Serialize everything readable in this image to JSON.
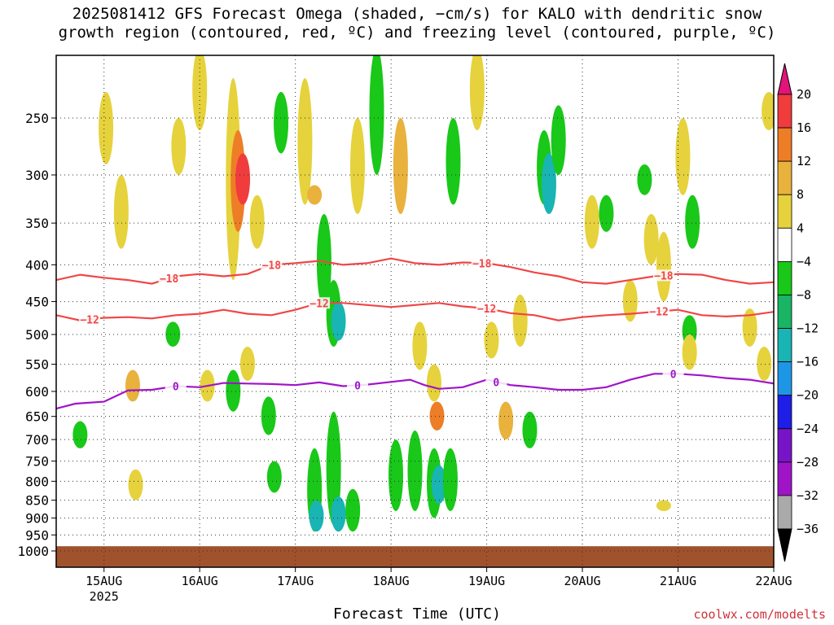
{
  "chart_data": {
    "type": "heatmap",
    "title_line1": "2025081412 GFS Forecast Omega (shaded, −cm/s) for KALO with dendritic snow",
    "title_line2": "growth region (contoured, red, ºC) and freezing level (contoured, purple, ºC)",
    "xlabel": "Forecast Time (UTC)",
    "ylabel": "",
    "credit": "coolwx.com/modelts",
    "x_ticks": [
      {
        "day": 15,
        "label": "15AUG",
        "sub": "2025"
      },
      {
        "day": 16,
        "label": "16AUG",
        "sub": ""
      },
      {
        "day": 17,
        "label": "17AUG",
        "sub": ""
      },
      {
        "day": 18,
        "label": "18AUG",
        "sub": ""
      },
      {
        "day": 19,
        "label": "19AUG",
        "sub": ""
      },
      {
        "day": 20,
        "label": "20AUG",
        "sub": ""
      },
      {
        "day": 21,
        "label": "21AUG",
        "sub": ""
      },
      {
        "day": 22,
        "label": "22AUG",
        "sub": ""
      }
    ],
    "xlim_day": [
      14.5,
      22
    ],
    "y_levels": [
      250,
      300,
      350,
      400,
      450,
      500,
      550,
      600,
      650,
      700,
      750,
      800,
      850,
      900,
      950,
      1000
    ],
    "y_axis": "pressure (hPa), log scale, inverted",
    "ylim": [
      1000,
      200
    ],
    "grid": "dotted horizontal and vertical",
    "colorbar": {
      "labels": [
        "20",
        "16",
        "12",
        "8",
        "4",
        "−4",
        "−8",
        "−12",
        "−16",
        "−20",
        "−24",
        "−28",
        "−32",
        "−36"
      ],
      "colors": [
        "#f03c3c",
        "#ee7d28",
        "#e8b23c",
        "#e6d23c",
        "#ffffff",
        "#19c819",
        "#19b464",
        "#19b4b4",
        "#1e96e6",
        "#1e1ee6",
        "#7814c8",
        "#a014c8",
        "#aaaaaa"
      ],
      "top_color": "#e0147a",
      "bottom_color": "#000000"
    },
    "contours": [
      {
        "label": "−18",
        "color": "#f04646",
        "points": [
          [
            14.5,
            420
          ],
          [
            14.75,
            413
          ],
          [
            15.0,
            417
          ],
          [
            15.25,
            420
          ],
          [
            15.5,
            425
          ],
          [
            15.75,
            415
          ],
          [
            16.0,
            412
          ],
          [
            16.25,
            415
          ],
          [
            16.5,
            412
          ],
          [
            16.75,
            400
          ],
          [
            17.0,
            398
          ],
          [
            17.25,
            395
          ],
          [
            17.5,
            400
          ],
          [
            17.75,
            398
          ],
          [
            18.0,
            392
          ],
          [
            18.25,
            398
          ],
          [
            18.5,
            400
          ],
          [
            18.75,
            397
          ],
          [
            19.0,
            398
          ],
          [
            19.25,
            403
          ],
          [
            19.5,
            410
          ],
          [
            19.75,
            415
          ],
          [
            20.0,
            423
          ],
          [
            20.25,
            425
          ],
          [
            20.5,
            420
          ],
          [
            20.75,
            415
          ],
          [
            21.0,
            412
          ],
          [
            21.25,
            413
          ],
          [
            21.5,
            420
          ],
          [
            21.75,
            425
          ],
          [
            22.0,
            423
          ]
        ],
        "labels_at": [
          15.68,
          16.75,
          18.95,
          20.85
        ]
      },
      {
        "label": "−12",
        "color": "#f04646",
        "points": [
          [
            14.5,
            470
          ],
          [
            14.75,
            478
          ],
          [
            15.0,
            474
          ],
          [
            15.25,
            473
          ],
          [
            15.5,
            475
          ],
          [
            15.75,
            470
          ],
          [
            16.0,
            468
          ],
          [
            16.25,
            462
          ],
          [
            16.5,
            468
          ],
          [
            16.75,
            470
          ],
          [
            17.0,
            462
          ],
          [
            17.25,
            452
          ],
          [
            17.5,
            452
          ],
          [
            17.75,
            455
          ],
          [
            18.0,
            458
          ],
          [
            18.25,
            455
          ],
          [
            18.5,
            452
          ],
          [
            18.75,
            457
          ],
          [
            19.0,
            460
          ],
          [
            19.25,
            467
          ],
          [
            19.5,
            470
          ],
          [
            19.75,
            478
          ],
          [
            20.0,
            473
          ],
          [
            20.25,
            470
          ],
          [
            20.5,
            468
          ],
          [
            20.75,
            465
          ],
          [
            21.0,
            462
          ],
          [
            21.25,
            470
          ],
          [
            21.5,
            472
          ],
          [
            21.75,
            470
          ],
          [
            22.0,
            465
          ]
        ],
        "labels_at": [
          14.85,
          17.25,
          19.0,
          20.8
        ]
      },
      {
        "label": "0",
        "color": "#a014c8",
        "points": [
          [
            14.5,
            634
          ],
          [
            14.7,
            624
          ],
          [
            15.0,
            620
          ],
          [
            15.25,
            598
          ],
          [
            15.5,
            597
          ],
          [
            15.75,
            590
          ],
          [
            16.0,
            592
          ],
          [
            16.25,
            584
          ],
          [
            16.5,
            585
          ],
          [
            16.75,
            586
          ],
          [
            17.0,
            588
          ],
          [
            17.25,
            583
          ],
          [
            17.5,
            590
          ],
          [
            17.75,
            587
          ],
          [
            18.0,
            582
          ],
          [
            18.2,
            578
          ],
          [
            18.35,
            588
          ],
          [
            18.5,
            595
          ],
          [
            18.75,
            592
          ],
          [
            19.0,
            578
          ],
          [
            19.25,
            588
          ],
          [
            19.5,
            592
          ],
          [
            19.75,
            597
          ],
          [
            20.0,
            597
          ],
          [
            20.25,
            592
          ],
          [
            20.5,
            578
          ],
          [
            20.75,
            567
          ],
          [
            21.0,
            567
          ],
          [
            21.25,
            570
          ],
          [
            21.5,
            575
          ],
          [
            21.75,
            578
          ],
          [
            22.0,
            585
          ]
        ],
        "labels_at": [
          15.75,
          17.65,
          19.1,
          20.95
        ]
      }
    ],
    "shaded_cells": [
      {
        "day": 15.02,
        "p0": 230,
        "p1": 290,
        "v": 6
      },
      {
        "day": 15.18,
        "p0": 300,
        "p1": 380,
        "v": 6
      },
      {
        "day": 15.3,
        "p0": 560,
        "p1": 620,
        "v": 10
      },
      {
        "day": 15.33,
        "p0": 770,
        "p1": 850,
        "v": 6
      },
      {
        "day": 14.75,
        "p0": 660,
        "p1": 720,
        "v": -6
      },
      {
        "day": 15.72,
        "p0": 480,
        "p1": 520,
        "v": -6
      },
      {
        "day": 15.78,
        "p0": 250,
        "p1": 300,
        "v": 6
      },
      {
        "day": 16.0,
        "p0": 200,
        "p1": 260,
        "v": 6
      },
      {
        "day": 16.35,
        "p0": 220,
        "p1": 420,
        "v": 6
      },
      {
        "day": 16.4,
        "p0": 260,
        "p1": 360,
        "v": 12
      },
      {
        "day": 16.45,
        "p0": 280,
        "p1": 330,
        "v": 16
      },
      {
        "day": 16.6,
        "p0": 320,
        "p1": 380,
        "v": 6
      },
      {
        "day": 16.08,
        "p0": 560,
        "p1": 620,
        "v": 6
      },
      {
        "day": 16.35,
        "p0": 560,
        "p1": 640,
        "v": -6
      },
      {
        "day": 16.5,
        "p0": 520,
        "p1": 580,
        "v": 6
      },
      {
        "day": 16.72,
        "p0": 610,
        "p1": 690,
        "v": -6
      },
      {
        "day": 16.78,
        "p0": 750,
        "p1": 830,
        "v": -6
      },
      {
        "day": 16.85,
        "p0": 230,
        "p1": 280,
        "v": -6
      },
      {
        "day": 17.1,
        "p0": 220,
        "p1": 330,
        "v": 6
      },
      {
        "day": 17.2,
        "p0": 310,
        "p1": 330,
        "v": 10
      },
      {
        "day": 17.3,
        "p0": 340,
        "p1": 460,
        "v": -6
      },
      {
        "day": 17.4,
        "p0": 420,
        "p1": 520,
        "v": -6
      },
      {
        "day": 17.45,
        "p0": 450,
        "p1": 510,
        "v": -12
      },
      {
        "day": 17.2,
        "p0": 720,
        "p1": 940,
        "v": -6
      },
      {
        "day": 17.22,
        "p0": 850,
        "p1": 940,
        "v": -12
      },
      {
        "day": 17.4,
        "p0": 640,
        "p1": 920,
        "v": -6
      },
      {
        "day": 17.45,
        "p0": 840,
        "p1": 940,
        "v": -12
      },
      {
        "day": 17.6,
        "p0": 820,
        "p1": 940,
        "v": -6
      },
      {
        "day": 17.65,
        "p0": 250,
        "p1": 340,
        "v": 6
      },
      {
        "day": 17.85,
        "p0": 200,
        "p1": 300,
        "v": -6
      },
      {
        "day": 18.05,
        "p0": 700,
        "p1": 880,
        "v": -6
      },
      {
        "day": 18.1,
        "p0": 250,
        "p1": 340,
        "v": 10
      },
      {
        "day": 18.25,
        "p0": 680,
        "p1": 880,
        "v": -6
      },
      {
        "day": 18.3,
        "p0": 480,
        "p1": 560,
        "v": 6
      },
      {
        "day": 18.45,
        "p0": 550,
        "p1": 620,
        "v": 6
      },
      {
        "day": 18.45,
        "p0": 720,
        "p1": 900,
        "v": -6
      },
      {
        "day": 18.5,
        "p0": 760,
        "p1": 860,
        "v": -12
      },
      {
        "day": 18.48,
        "p0": 620,
        "p1": 680,
        "v": 12
      },
      {
        "day": 18.62,
        "p0": 720,
        "p1": 880,
        "v": -6
      },
      {
        "day": 18.65,
        "p0": 250,
        "p1": 330,
        "v": -6
      },
      {
        "day": 18.9,
        "p0": 200,
        "p1": 260,
        "v": 6
      },
      {
        "day": 19.05,
        "p0": 480,
        "p1": 540,
        "v": 6
      },
      {
        "day": 19.2,
        "p0": 620,
        "p1": 700,
        "v": 10
      },
      {
        "day": 19.35,
        "p0": 440,
        "p1": 520,
        "v": 6
      },
      {
        "day": 19.45,
        "p0": 640,
        "p1": 720,
        "v": -6
      },
      {
        "day": 19.6,
        "p0": 260,
        "p1": 330,
        "v": -6
      },
      {
        "day": 19.65,
        "p0": 280,
        "p1": 340,
        "v": -12
      },
      {
        "day": 19.75,
        "p0": 240,
        "p1": 300,
        "v": -6
      },
      {
        "day": 20.1,
        "p0": 320,
        "p1": 380,
        "v": 6
      },
      {
        "day": 20.25,
        "p0": 320,
        "p1": 360,
        "v": -6
      },
      {
        "day": 20.5,
        "p0": 420,
        "p1": 480,
        "v": 6
      },
      {
        "day": 20.65,
        "p0": 290,
        "p1": 320,
        "v": -6
      },
      {
        "day": 20.85,
        "p0": 360,
        "p1": 450,
        "v": 6
      },
      {
        "day": 20.72,
        "p0": 340,
        "p1": 400,
        "v": 6
      },
      {
        "day": 21.05,
        "p0": 250,
        "p1": 320,
        "v": 6
      },
      {
        "day": 21.12,
        "p0": 470,
        "p1": 520,
        "v": -6
      },
      {
        "day": 21.15,
        "p0": 320,
        "p1": 380,
        "v": -6
      },
      {
        "day": 21.12,
        "p0": 500,
        "p1": 560,
        "v": 6
      },
      {
        "day": 20.85,
        "p0": 850,
        "p1": 880,
        "v": 6
      },
      {
        "day": 21.75,
        "p0": 460,
        "p1": 520,
        "v": 6
      },
      {
        "day": 21.9,
        "p0": 520,
        "p1": 580,
        "v": 6
      },
      {
        "day": 21.95,
        "p0": 230,
        "p1": 260,
        "v": 6
      }
    ],
    "surface": {
      "p_top": 985,
      "color": "#a0522d"
    }
  }
}
